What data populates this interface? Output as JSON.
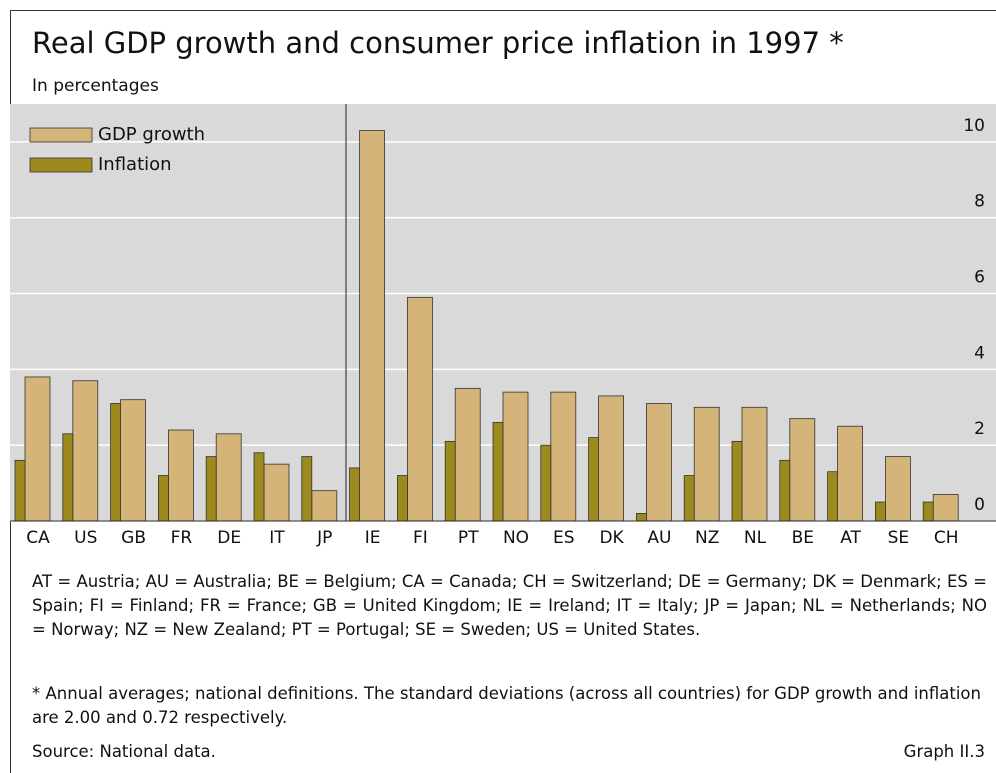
{
  "chart_data": {
    "type": "bar",
    "title": "Real GDP growth and consumer price inflation in 1997 *",
    "subtitle": "In percentages",
    "categories": [
      "CA",
      "US",
      "GB",
      "FR",
      "DE",
      "IT",
      "JP",
      "IE",
      "FI",
      "PT",
      "NO",
      "ES",
      "DK",
      "AU",
      "NZ",
      "NL",
      "BE",
      "AT",
      "SE",
      "CH"
    ],
    "series": [
      {
        "name": "GDP growth",
        "color": "#d4b478",
        "values": [
          3.8,
          3.7,
          3.2,
          2.4,
          2.3,
          1.5,
          0.8,
          10.3,
          5.9,
          3.5,
          3.4,
          3.4,
          3.3,
          3.1,
          3.0,
          3.0,
          2.7,
          2.5,
          1.7,
          0.7
        ]
      },
      {
        "name": "Inflation",
        "color": "#9c8a1e",
        "values": [
          1.6,
          2.3,
          3.1,
          1.2,
          1.7,
          1.8,
          1.7,
          1.4,
          1.2,
          2.1,
          2.6,
          2.0,
          2.2,
          0.2,
          1.2,
          2.1,
          1.6,
          1.3,
          0.5,
          0.5
        ]
      }
    ],
    "ylim": [
      0,
      11
    ],
    "yticks": [
      0,
      2,
      4,
      6,
      8,
      10
    ],
    "grid": true,
    "legend": "upper left",
    "abbreviations": "AT = Austria;  AU = Australia;  BE = Belgium;  CA = Canada;  CH = Switzerland;  DE = Germany;  DK = Denmark; ES = Spain; FI = Finland; FR = France; GB = United Kingdom; IE = Ireland; IT = Italy;  JP = Japan;  NL = Netherlands;  NO = Norway;  NZ = New Zealand;  PT = Portugal;  SE = Sweden;  US = United States.",
    "footnote": "* Annual averages; national definitions. The standard deviations (across all countries) for GDP growth and inflation are 2.00 and 0.72 respectively.",
    "source": "Source: National data.",
    "graph_id": "Graph II.3"
  }
}
